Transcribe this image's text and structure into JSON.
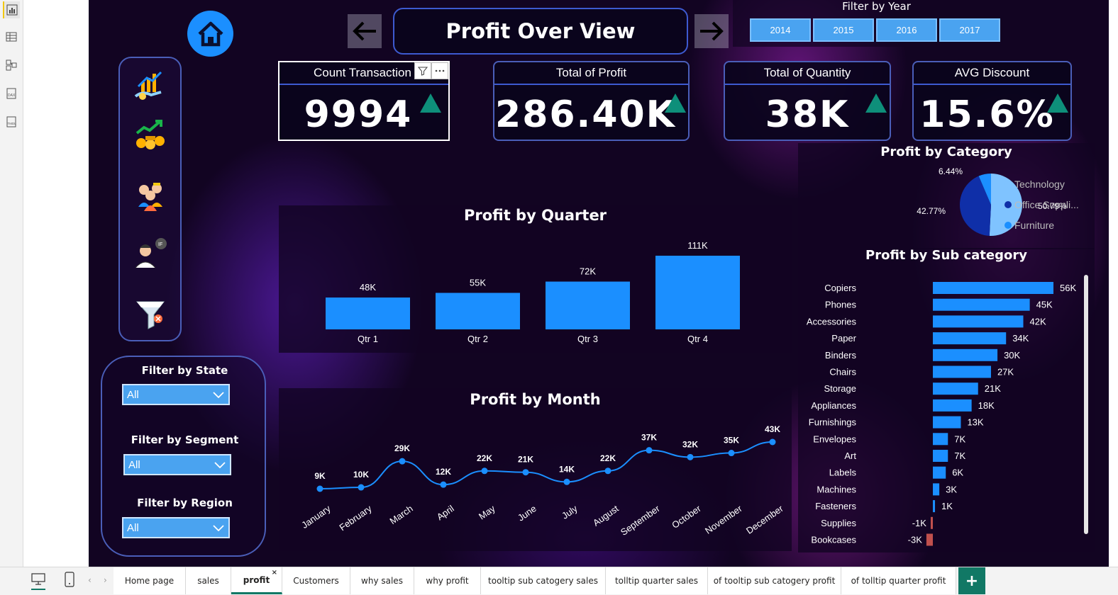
{
  "report": {
    "title": "Profit Over View",
    "year_filter": {
      "title": "Filter by Year",
      "years": [
        "2014",
        "2015",
        "2016",
        "2017"
      ]
    }
  },
  "kpis": [
    {
      "title": "Count Transaction",
      "value": "9994"
    },
    {
      "title": "Total of Profit",
      "value": "286.40K"
    },
    {
      "title": "Total of Quantity",
      "value": "38K"
    },
    {
      "title": "AVG Discount",
      "value": "15.6%"
    }
  ],
  "filters": [
    {
      "title": "Filter by State",
      "value": "All"
    },
    {
      "title": "Filter by Segment",
      "value": "All"
    },
    {
      "title": "Filter by Region",
      "value": "All"
    }
  ],
  "nav_icons": [
    "growth-money-icon",
    "coins-growth-icon",
    "team-icon",
    "customer-icon",
    "filter-icon"
  ],
  "rail_icons": [
    "report-view-icon",
    "table-view-icon",
    "model-view-icon",
    "dax-query-icon",
    "tmdl-view-icon"
  ],
  "colors": {
    "accent": "#1b8fff",
    "negative": "#c0504d",
    "pie_technology": "#7fc3ff",
    "pie_office": "#0f2fa8",
    "pie_furniture": "#1b8fff",
    "kpi_up": "#0e8f7a",
    "tab_active": "#117865"
  },
  "chart_data": [
    {
      "type": "bar",
      "title": "Profit by Quarter",
      "categories": [
        "Qtr 1",
        "Qtr 2",
        "Qtr 3",
        "Qtr 4"
      ],
      "values": [
        48,
        55,
        72,
        111
      ],
      "labels": [
        "48K",
        "55K",
        "72K",
        "111K"
      ],
      "ylim": [
        0,
        111
      ]
    },
    {
      "type": "line",
      "title": "Profit by Month",
      "categories": [
        "January",
        "February",
        "March",
        "April",
        "May",
        "June",
        "July",
        "August",
        "September",
        "October",
        "November",
        "December"
      ],
      "values": [
        9,
        10,
        29,
        12,
        22,
        21,
        14,
        22,
        37,
        32,
        35,
        43
      ],
      "labels": [
        "9K",
        "10K",
        "29K",
        "12K",
        "22K",
        "21K",
        "14K",
        "22K",
        "37K",
        "32K",
        "35K",
        "43K"
      ]
    },
    {
      "type": "pie",
      "title": "Profit by Category",
      "categories": [
        "Technology",
        "Office Suppli...",
        "Furniture"
      ],
      "values": [
        50.79,
        42.77,
        6.44
      ],
      "labels": [
        "50.79%",
        "42.77%",
        "6.44%"
      ]
    },
    {
      "type": "bar",
      "orientation": "horizontal",
      "title": "Profit by Sub category",
      "categories": [
        "Copiers",
        "Phones",
        "Accessories",
        "Paper",
        "Binders",
        "Chairs",
        "Storage",
        "Appliances",
        "Furnishings",
        "Envelopes",
        "Art",
        "Labels",
        "Machines",
        "Fasteners",
        "Supplies",
        "Bookcases"
      ],
      "values": [
        56,
        45,
        42,
        34,
        30,
        27,
        21,
        18,
        13,
        7,
        7,
        6,
        3,
        1,
        -1,
        -3
      ],
      "labels": [
        "56K",
        "45K",
        "42K",
        "34K",
        "30K",
        "27K",
        "21K",
        "18K",
        "13K",
        "7K",
        "7K",
        "6K",
        "3K",
        "1K",
        "-1K",
        "-3K"
      ]
    }
  ],
  "tabs": {
    "items": [
      "Home page",
      "sales",
      "profit",
      "Customers",
      "why sales",
      "why profit",
      "tooltip sub catogery sales",
      "tolltip quarter sales",
      "of tooltip sub catogery profit",
      "of tolltip quarter profit"
    ],
    "active": "profit",
    "close_glyph": "×",
    "add_glyph": "+"
  }
}
